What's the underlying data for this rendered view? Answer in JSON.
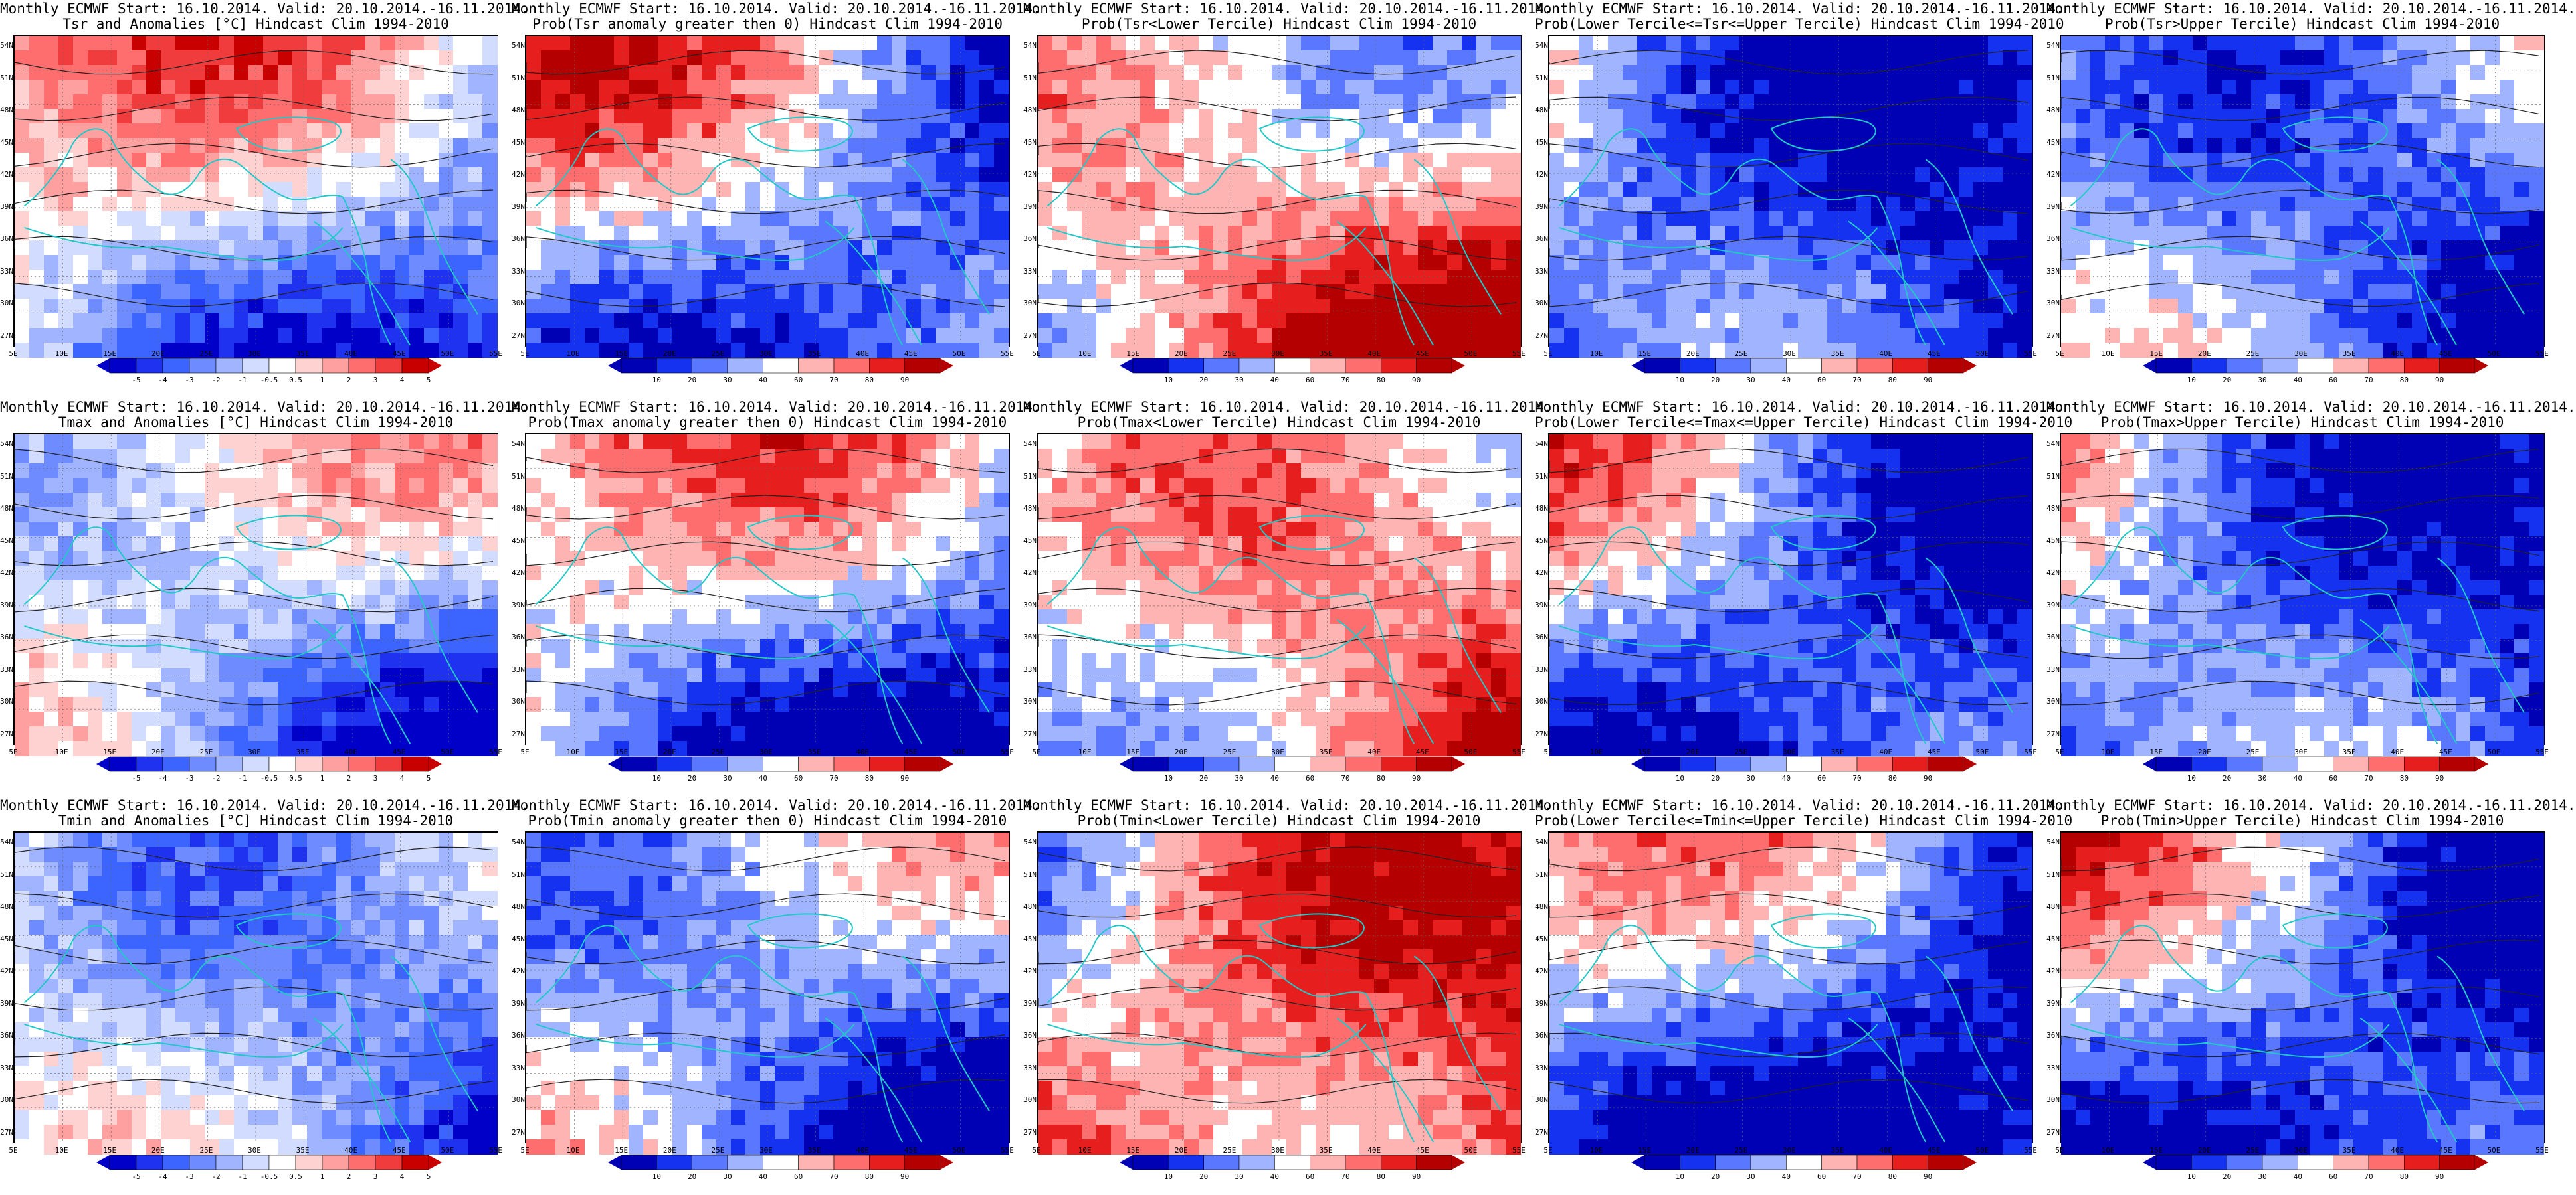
{
  "lat_labels": [
    "54N",
    "51N",
    "48N",
    "45N",
    "42N",
    "39N",
    "36N",
    "33N",
    "30N",
    "27N"
  ],
  "lon_labels": [
    "5E",
    "10E",
    "15E",
    "20E",
    "25E",
    "30E",
    "35E",
    "40E",
    "45E",
    "50E",
    "55E"
  ],
  "anomaly_scale": {
    "labels": [
      "-5",
      "-4",
      "-3",
      "-2",
      "-1",
      "-0.5",
      "0.5",
      "1",
      "2",
      "3",
      "4",
      "5"
    ],
    "colors": [
      "#0000c8",
      "#1e32f0",
      "#3c64ff",
      "#6e8cff",
      "#a0b4ff",
      "#d2dcff",
      "#ffffff",
      "#ffd2d2",
      "#ffa0a0",
      "#ff6e6e",
      "#f03c3c",
      "#c80000"
    ]
  },
  "prob_scale": {
    "labels": [
      "10",
      "20",
      "30",
      "40",
      "60",
      "70",
      "80",
      "90"
    ],
    "colors": [
      "#0000b4",
      "#1432f0",
      "#5a78ff",
      "#a0b4ff",
      "#ffffff",
      "#ffb4b4",
      "#ff6e6e",
      "#e61e1e",
      "#b40000"
    ]
  },
  "panels": [
    {
      "id": "r1c1",
      "line1": "Monthly ECMWF Start: 16.10.2014. Valid: 20.10.2014.-16.11.2014.",
      "line2": "Tsr and Anomalies [°C] Hindcast Clim 1994-2010",
      "scale": "anomaly",
      "bias": -0.1
    },
    {
      "id": "r1c2",
      "line1": "Monthly ECMWF Start: 16.10.2014. Valid: 20.10.2014.-16.11.2014.",
      "line2": "Prob(Tsr anomaly greater then 0) Hindcast Clim 1994-2010",
      "scale": "prob",
      "bias": -0.2
    },
    {
      "id": "r1c3",
      "line1": "Monthly ECMWF Start: 16.10.2014. Valid: 20.10.2014.-16.11.2014.",
      "line2": "Prob(Tsr<Lower Tercile) Hindcast Clim 1994-2010",
      "scale": "prob",
      "bias": 0.25
    },
    {
      "id": "r1c4",
      "line1": "Monthly ECMWF Start: 16.10.2014. Valid: 20.10.2014.-16.11.2014.",
      "line2": "Prob(Lower Tercile<=Tsr<=Upper Tercile) Hindcast Clim 1994-2010",
      "scale": "prob",
      "bias": -0.45
    },
    {
      "id": "r1c5",
      "line1": "Monthly ECMWF Start: 16.10.2014. Valid: 20.10.2014.-16.11.2014.",
      "line2": "Prob(Tsr>Upper Tercile) Hindcast Clim 1994-2010",
      "scale": "prob",
      "bias": -0.35
    },
    {
      "id": "r2c1",
      "line1": "Monthly ECMWF Start: 16.10.2014. Valid: 20.10.2014.-16.11.2014.",
      "line2": "Tmax and Anomalies [°C] Hindcast Clim 1994-2010",
      "scale": "anomaly",
      "bias": -0.15
    },
    {
      "id": "r2c2",
      "line1": "Monthly ECMWF Start: 16.10.2014. Valid: 20.10.2014.-16.11.2014.",
      "line2": "Prob(Tmax anomaly greater then 0) Hindcast Clim 1994-2010",
      "scale": "prob",
      "bias": -0.2
    },
    {
      "id": "r2c3",
      "line1": "Monthly ECMWF Start: 16.10.2014. Valid: 20.10.2014.-16.11.2014.",
      "line2": "Prob(Tmax<Lower Tercile) Hindcast Clim 1994-2010",
      "scale": "prob",
      "bias": 0.15
    },
    {
      "id": "r2c4",
      "line1": "Monthly ECMWF Start: 16.10.2014. Valid: 20.10.2014.-16.11.2014.",
      "line2": "Prob(Lower Tercile<=Tmax<=Upper Tercile) Hindcast Clim 1994-2010",
      "scale": "prob",
      "bias": -0.4
    },
    {
      "id": "r2c5",
      "line1": "Monthly ECMWF Start: 16.10.2014. Valid: 20.10.2014.-16.11.2014.",
      "line2": "Prob(Tmax>Upper Tercile) Hindcast Clim 1994-2010",
      "scale": "prob",
      "bias": -0.35
    },
    {
      "id": "r3c1",
      "line1": "Monthly ECMWF Start: 16.10.2014. Valid: 20.10.2014.-16.11.2014.",
      "line2": "Tmin and Anomalies [°C] Hindcast Clim 1994-2010",
      "scale": "anomaly",
      "bias": -0.2
    },
    {
      "id": "r3c2",
      "line1": "Monthly ECMWF Start: 16.10.2014. Valid: 20.10.2014.-16.11.2014.",
      "line2": "Prob(Tmin anomaly greater then 0) Hindcast Clim 1994-2010",
      "scale": "prob",
      "bias": -0.3
    },
    {
      "id": "r3c3",
      "line1": "Monthly ECMWF Start: 16.10.2014. Valid: 20.10.2014.-16.11.2014.",
      "line2": "Prob(Tmin<Lower Tercile) Hindcast Clim 1994-2010",
      "scale": "prob",
      "bias": 0.3
    },
    {
      "id": "r3c4",
      "line1": "Monthly ECMWF Start: 16.10.2014. Valid: 20.10.2014.-16.11.2014.",
      "line2": "Prob(Lower Tercile<=Tmin<=Upper Tercile) Hindcast Clim 1994-2010",
      "scale": "prob",
      "bias": -0.45
    },
    {
      "id": "r3c5",
      "line1": "Monthly ECMWF Start: 16.10.2014. Valid: 20.10.2014.-16.11.2014.",
      "line2": "Prob(Tmin>Upper Tercile) Hindcast Clim 1994-2010",
      "scale": "prob",
      "bias": -0.4
    }
  ]
}
